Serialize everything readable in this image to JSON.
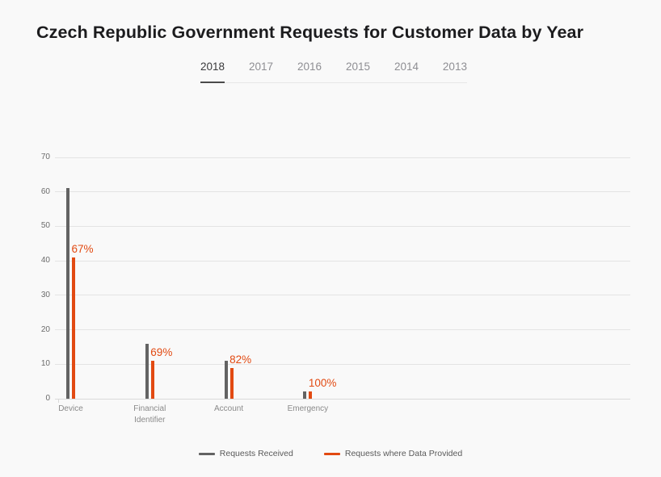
{
  "title": "Czech Republic Government Requests for Customer Data by Year",
  "tabs": {
    "active": "2018",
    "items": [
      {
        "label": "2018"
      },
      {
        "label": "2017"
      },
      {
        "label": "2016"
      },
      {
        "label": "2015"
      },
      {
        "label": "2014"
      },
      {
        "label": "2013"
      }
    ]
  },
  "chart_data": {
    "type": "bar",
    "title": "Czech Republic Government Requests for Customer Data by Year",
    "categories": [
      "Device",
      "Financial Identifier",
      "Account",
      "Emergency"
    ],
    "series": [
      {
        "name": "Requests Received",
        "color": "#636363",
        "values": [
          61,
          16,
          11,
          2
        ]
      },
      {
        "name": "Requests where Data Provided",
        "color": "#e24a12",
        "values": [
          41,
          11,
          9,
          2
        ]
      }
    ],
    "percent_labels": [
      "67%",
      "69%",
      "82%",
      "100%"
    ],
    "ylim": [
      0,
      70
    ],
    "yticks": [
      0,
      10,
      20,
      30,
      40,
      50,
      60,
      70
    ],
    "xlabel": "",
    "ylabel": "",
    "grid": true,
    "legend_position": "bottom"
  },
  "colors": {
    "background": "#f9f9f9",
    "requests_received": "#636363",
    "data_provided": "#e24a12",
    "gridline": "#e4e4e4",
    "active_tab": "#3a3a3c",
    "inactive_tab": "#8e8e93"
  }
}
